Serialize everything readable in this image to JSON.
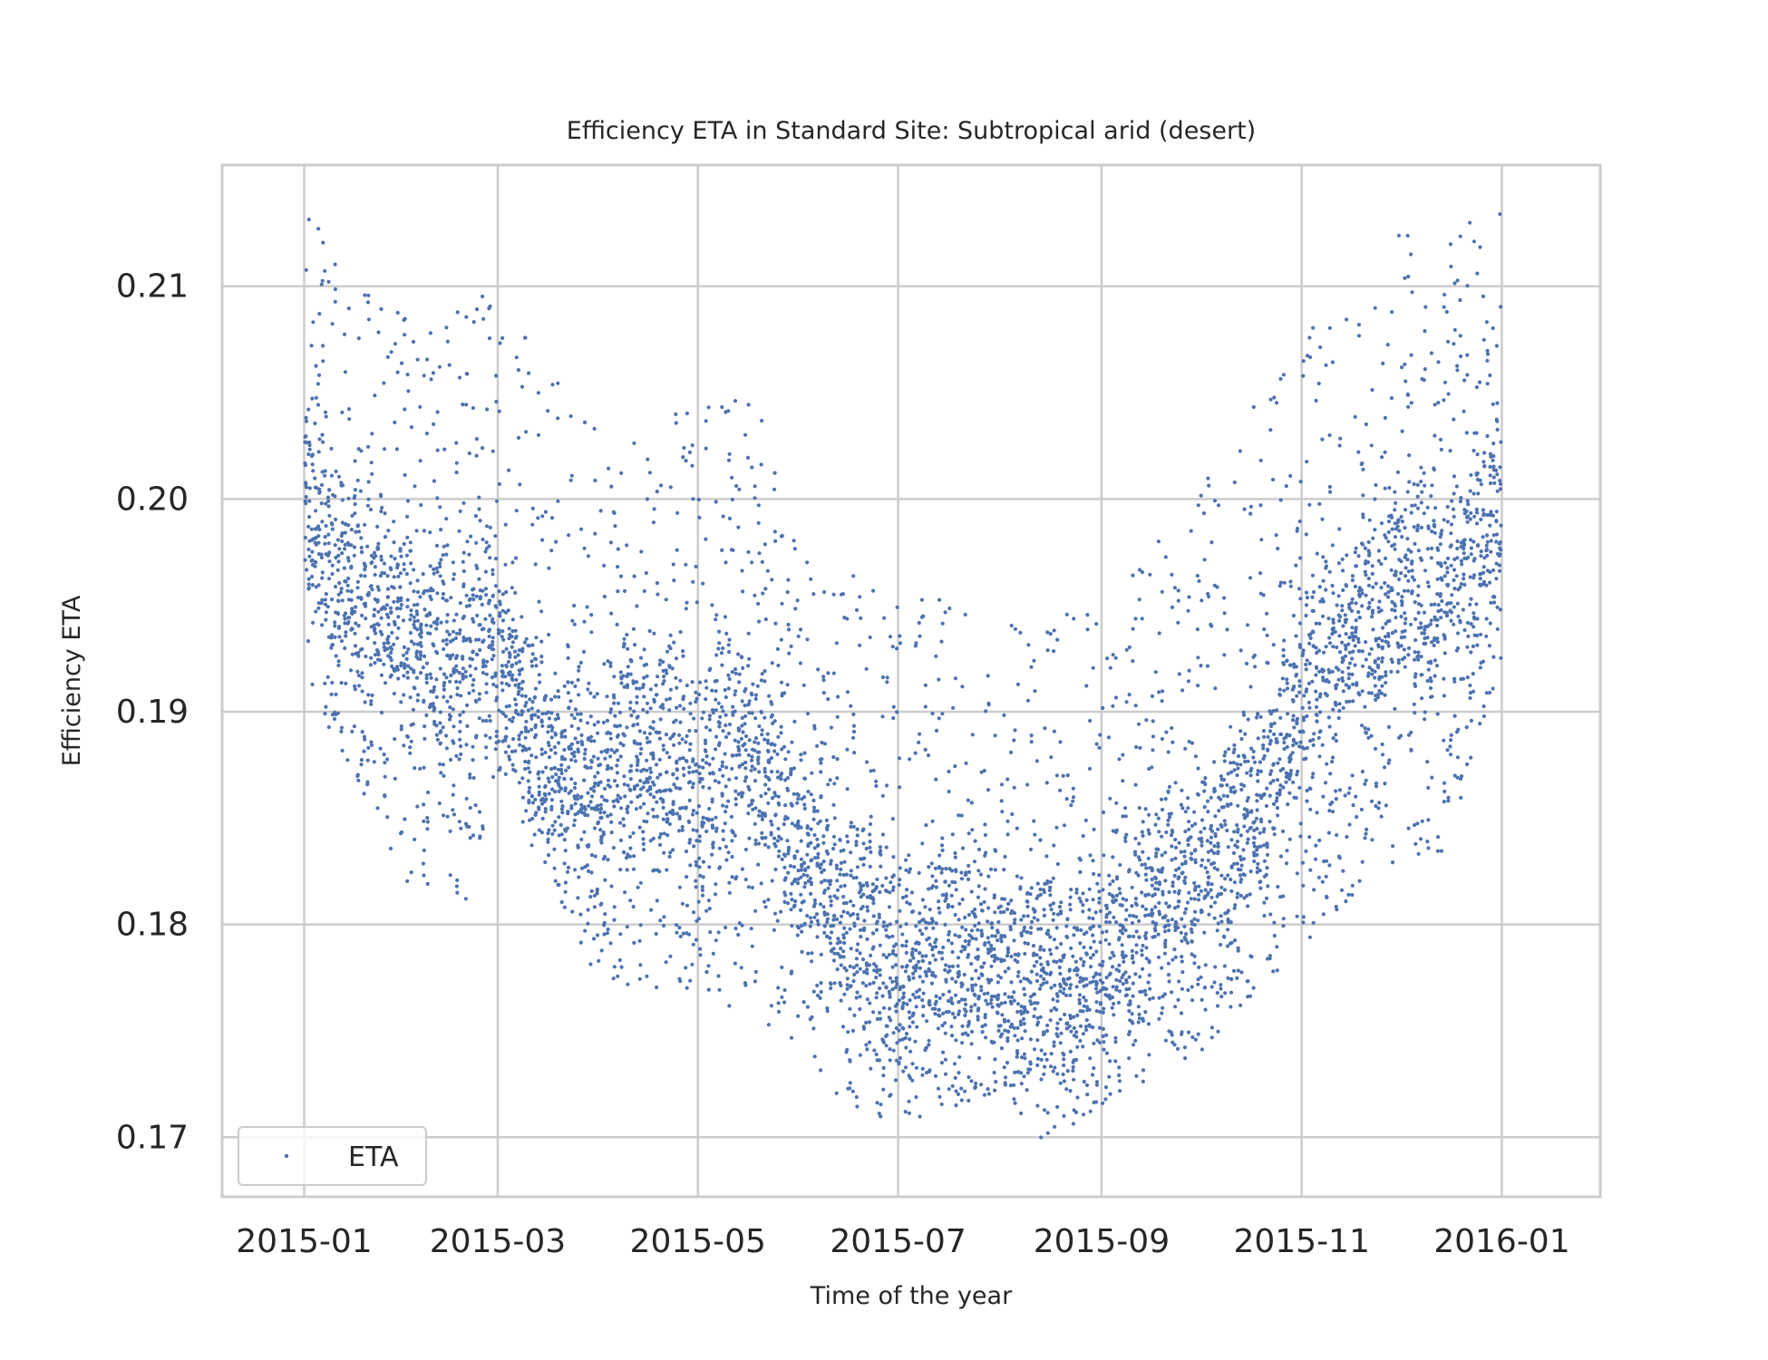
{
  "chart_data": {
    "type": "scatter",
    "title": "Efficiency ETA in Standard Site: Subtropical arid (desert)",
    "xlabel": "Time of the year",
    "ylabel": "Efficiency ETA",
    "xlim": [
      "2014-12-07",
      "2016-01-31"
    ],
    "ylim": [
      0.1672,
      0.2157
    ],
    "x_ticks": [
      "2015-01",
      "2015-03",
      "2015-05",
      "2015-07",
      "2015-09",
      "2015-11",
      "2016-01"
    ],
    "y_ticks": [
      "0.17",
      "0.18",
      "0.19",
      "0.20",
      "0.21"
    ],
    "grid": true,
    "legend_position": "lower-left",
    "series": [
      {
        "name": "ETA",
        "color": "#4c72b0",
        "marker": "dot",
        "sampling": "hourly daylight values, 2015-01-01 to 2015-12-31",
        "trend": [
          {
            "x": "2015-01-01",
            "y": 0.2005
          },
          {
            "x": "2015-01-15",
            "y": 0.196
          },
          {
            "x": "2015-02-01",
            "y": 0.194
          },
          {
            "x": "2015-02-15",
            "y": 0.1925
          },
          {
            "x": "2015-03-01",
            "y": 0.194
          },
          {
            "x": "2015-03-15",
            "y": 0.188
          },
          {
            "x": "2015-04-01",
            "y": 0.187
          },
          {
            "x": "2015-04-15",
            "y": 0.1885
          },
          {
            "x": "2015-05-01",
            "y": 0.187
          },
          {
            "x": "2015-05-15",
            "y": 0.189
          },
          {
            "x": "2015-06-01",
            "y": 0.184
          },
          {
            "x": "2015-06-15",
            "y": 0.1805
          },
          {
            "x": "2015-07-01",
            "y": 0.178
          },
          {
            "x": "2015-07-15",
            "y": 0.179
          },
          {
            "x": "2015-08-01",
            "y": 0.178
          },
          {
            "x": "2015-08-15",
            "y": 0.1775
          },
          {
            "x": "2015-09-01",
            "y": 0.1785
          },
          {
            "x": "2015-09-15",
            "y": 0.1805
          },
          {
            "x": "2015-10-01",
            "y": 0.1825
          },
          {
            "x": "2015-10-15",
            "y": 0.185
          },
          {
            "x": "2015-11-01",
            "y": 0.1905
          },
          {
            "x": "2015-11-15",
            "y": 0.1935
          },
          {
            "x": "2015-12-01",
            "y": 0.1955
          },
          {
            "x": "2015-12-15",
            "y": 0.1965
          },
          {
            "x": "2016-01-01",
            "y": 0.1995
          }
        ],
        "lower_envelope": [
          {
            "x": "2015-01-01",
            "y": 0.1915
          },
          {
            "x": "2015-02-01",
            "y": 0.182
          },
          {
            "x": "2015-02-20",
            "y": 0.181
          },
          {
            "x": "2015-03-01",
            "y": 0.187
          },
          {
            "x": "2015-04-01",
            "y": 0.177
          },
          {
            "x": "2015-05-01",
            "y": 0.177
          },
          {
            "x": "2015-06-01",
            "y": 0.174
          },
          {
            "x": "2015-06-15",
            "y": 0.1715
          },
          {
            "x": "2015-07-01",
            "y": 0.1705
          },
          {
            "x": "2015-08-01",
            "y": 0.172
          },
          {
            "x": "2015-08-15",
            "y": 0.1697
          },
          {
            "x": "2015-09-01",
            "y": 0.1715
          },
          {
            "x": "2015-10-01",
            "y": 0.174
          },
          {
            "x": "2015-11-01",
            "y": 0.179
          },
          {
            "x": "2015-12-01",
            "y": 0.183
          },
          {
            "x": "2015-12-15",
            "y": 0.1835
          },
          {
            "x": "2016-01-01",
            "y": 0.1925
          }
        ],
        "upper_envelope": [
          {
            "x": "2015-01-01",
            "y": 0.2137
          },
          {
            "x": "2015-01-15",
            "y": 0.2105
          },
          {
            "x": "2015-02-01",
            "y": 0.2085
          },
          {
            "x": "2015-03-01",
            "y": 0.21
          },
          {
            "x": "2015-04-01",
            "y": 0.2035
          },
          {
            "x": "2015-05-01",
            "y": 0.2048
          },
          {
            "x": "2015-05-20",
            "y": 0.2045
          },
          {
            "x": "2015-06-01",
            "y": 0.1975
          },
          {
            "x": "2015-07-01",
            "y": 0.196
          },
          {
            "x": "2015-08-01",
            "y": 0.1945
          },
          {
            "x": "2015-09-01",
            "y": 0.195
          },
          {
            "x": "2015-10-01",
            "y": 0.201
          },
          {
            "x": "2015-11-01",
            "y": 0.2085
          },
          {
            "x": "2015-12-01",
            "y": 0.2127
          },
          {
            "x": "2015-12-20",
            "y": 0.2135
          },
          {
            "x": "2016-01-01",
            "y": 0.2135
          }
        ]
      }
    ]
  }
}
